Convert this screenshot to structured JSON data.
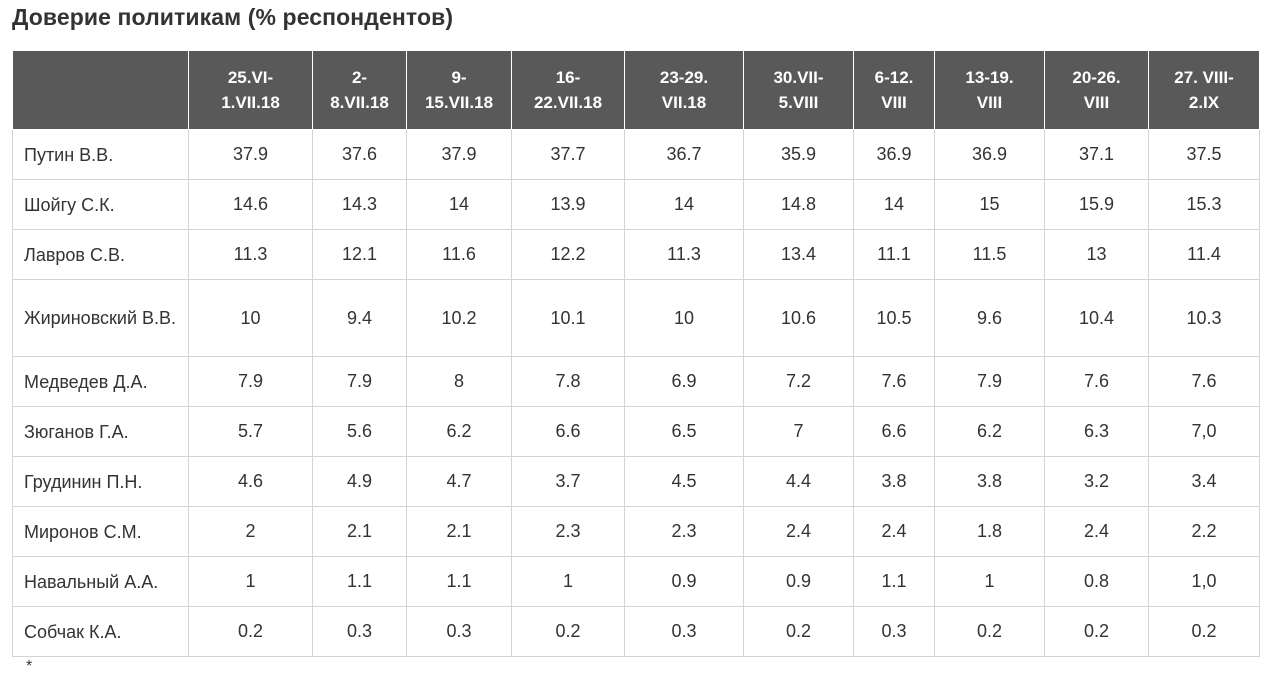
{
  "title": "Доверие политикам (% респондентов)",
  "columns": [
    "25.VI-\n1.VII.18",
    "2-\n8.VII.18",
    "9-\n15.VII.18",
    "16-\n22.VII.18",
    "23-29.\nVII.18",
    "30.VII-\n5.VIII",
    "6-12.\nVIII",
    "13-19.\nVIII",
    "20-26.\nVIII",
    "27. VIII-\n2.IX"
  ],
  "rows": [
    {
      "name": "Путин В.В.",
      "values": [
        "37.9",
        "37.6",
        "37.9",
        "37.7",
        "36.7",
        "35.9",
        "36.9",
        "36.9",
        "37.1",
        "37.5"
      ]
    },
    {
      "name": "Шойгу С.К.",
      "values": [
        "14.6",
        "14.3",
        "14",
        "13.9",
        "14",
        "14.8",
        "14",
        "15",
        "15.9",
        "15.3"
      ]
    },
    {
      "name": "Лавров С.В.",
      "values": [
        "11.3",
        "12.1",
        "11.6",
        "12.2",
        "11.3",
        "13.4",
        "11.1",
        "11.5",
        "13",
        "11.4"
      ]
    },
    {
      "name": "Жириновский В.В.",
      "values": [
        "10",
        "9.4",
        "10.2",
        "10.1",
        "10",
        "10.6",
        "10.5",
        "9.6",
        "10.4",
        "10.3"
      ]
    },
    {
      "name": "Медведев Д.А.",
      "values": [
        "7.9",
        "7.9",
        "8",
        "7.8",
        "6.9",
        "7.2",
        "7.6",
        "7.9",
        "7.6",
        "7.6"
      ]
    },
    {
      "name": "Зюганов Г.А.",
      "values": [
        "5.7",
        "5.6",
        "6.2",
        "6.6",
        "6.5",
        "7",
        "6.6",
        "6.2",
        "6.3",
        "7,0"
      ]
    },
    {
      "name": "Грудинин П.Н.",
      "values": [
        "4.6",
        "4.9",
        "4.7",
        "3.7",
        "4.5",
        "4.4",
        "3.8",
        "3.8",
        "3.2",
        "3.4"
      ]
    },
    {
      "name": "Миронов С.М.",
      "values": [
        "2",
        "2.1",
        "2.1",
        "2.3",
        "2.3",
        "2.4",
        "2.4",
        "1.8",
        "2.4",
        "2.2"
      ]
    },
    {
      "name": "Навальный А.А.",
      "values": [
        "1",
        "1.1",
        "1.1",
        "1",
        "0.9",
        "0.9",
        "1.1",
        "1",
        "0.8",
        "1,0"
      ]
    },
    {
      "name": "Собчак К.А.",
      "values": [
        "0.2",
        "0.3",
        "0.3",
        "0.2",
        "0.3",
        "0.2",
        "0.3",
        "0.2",
        "0.2",
        "0.2"
      ]
    }
  ],
  "footnote": "*"
}
